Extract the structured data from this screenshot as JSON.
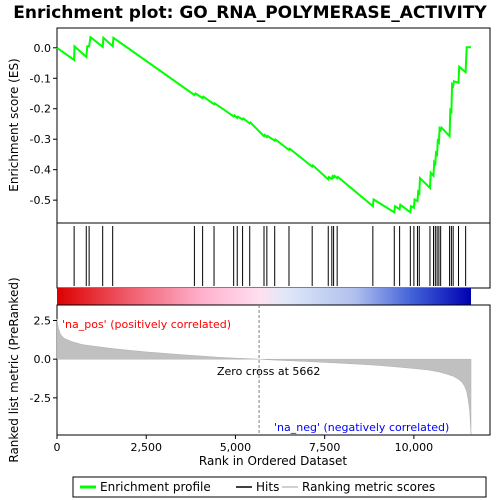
{
  "title": "Enrichment plot: GO_RNA_POLYMERASE_ACTIVITY",
  "colors": {
    "enrichment_line": "#00ff00",
    "hits": "#000000",
    "metric_fill": "#c0c0c0",
    "pos_label": "#ff0000",
    "neg_label": "#0000ff",
    "zero_cross_line": "#808080"
  },
  "chart_data": [
    {
      "type": "line",
      "panel": "enrichment-score",
      "ylabel": "Enrichment score (ES)",
      "xlim": [
        0,
        11600
      ],
      "ylim": [
        -0.575,
        0.065
      ],
      "yticks": [
        0.0,
        -0.1,
        -0.2,
        -0.3,
        -0.4,
        -0.5
      ],
      "ytick_labels": [
        "0.0",
        "-0.1",
        "-0.2",
        "-0.3",
        "-0.4",
        "-0.5"
      ],
      "grid": false,
      "series": [
        {
          "name": "Enrichment profile",
          "x": [
            0,
            480,
            490,
            820,
            850,
            900,
            940,
            1280,
            1300,
            1560,
            1580,
            3850,
            3880,
            4080,
            4100,
            4400,
            4420,
            4950,
            4970,
            5050,
            5070,
            5200,
            5220,
            5400,
            5420,
            5800,
            5820,
            5880,
            5900,
            6100,
            6120,
            6500,
            6520,
            7150,
            7170,
            7600,
            7620,
            7700,
            7720,
            7750,
            7770,
            7850,
            7870,
            8850,
            8870,
            9450,
            9470,
            9600,
            9620,
            9900,
            9920,
            10000,
            10020,
            10100,
            10120,
            10150,
            10170,
            10450,
            10470,
            10550,
            10570,
            10600,
            10620,
            10650,
            10670,
            10700,
            10720,
            10750,
            10770,
            11000,
            11020,
            11050,
            11070,
            11100,
            11120,
            11250,
            11270,
            11450,
            11480,
            11600
          ],
          "y": [
            0.0,
            -0.04,
            0.005,
            -0.03,
            0.005,
            0.005,
            0.035,
            0.003,
            0.033,
            0.005,
            0.033,
            -0.155,
            -0.15,
            -0.165,
            -0.16,
            -0.185,
            -0.182,
            -0.225,
            -0.222,
            -0.23,
            -0.226,
            -0.235,
            -0.232,
            -0.248,
            -0.245,
            -0.29,
            -0.286,
            -0.293,
            -0.289,
            -0.305,
            -0.301,
            -0.335,
            -0.331,
            -0.39,
            -0.386,
            -0.432,
            -0.424,
            -0.43,
            -0.422,
            -0.426,
            -0.42,
            -0.428,
            -0.424,
            -0.52,
            -0.498,
            -0.54,
            -0.52,
            -0.53,
            -0.515,
            -0.54,
            -0.52,
            -0.525,
            -0.498,
            -0.503,
            -0.473,
            -0.478,
            -0.428,
            -0.46,
            -0.41,
            -0.42,
            -0.375,
            -0.38,
            -0.345,
            -0.35,
            -0.305,
            -0.31,
            -0.265,
            -0.27,
            -0.262,
            -0.29,
            -0.205,
            -0.21,
            -0.12,
            -0.125,
            -0.11,
            -0.115,
            -0.062,
            -0.08,
            0.002,
            0.002
          ]
        }
      ]
    },
    {
      "type": "scatter",
      "panel": "hits",
      "xlim": [
        0,
        11600
      ],
      "series": [
        {
          "name": "Hits",
          "x": [
            480,
            820,
            900,
            1280,
            1560,
            3850,
            4080,
            4400,
            4950,
            5050,
            5200,
            5400,
            5800,
            5880,
            6100,
            6500,
            7150,
            7600,
            7700,
            7750,
            7850,
            8850,
            9450,
            9600,
            9900,
            10000,
            10100,
            10150,
            10450,
            10550,
            10600,
            10650,
            10700,
            10750,
            11000,
            11050,
            11100,
            11250,
            11450
          ]
        }
      ]
    },
    {
      "type": "area",
      "panel": "ranked-list-metric",
      "xlabel": "Rank in Ordered Dataset",
      "ylabel": "Ranked list metric (PreRanked)",
      "xlim": [
        0,
        11600
      ],
      "ylim": [
        -4.9,
        3.5
      ],
      "xticks": [
        0,
        2500,
        5000,
        7500,
        10000
      ],
      "xtick_labels": [
        "0",
        "2,500",
        "5,000",
        "7,500",
        "10,000"
      ],
      "yticks": [
        2.5,
        0.0,
        -2.5
      ],
      "ytick_labels": [
        "2.5",
        "0.0",
        "-2.5"
      ],
      "zero_cross": 5662,
      "grid": false,
      "series": [
        {
          "name": "Ranking metric scores",
          "x": [
            0,
            40,
            100,
            200,
            400,
            700,
            1000,
            1500,
            2000,
            2500,
            3000,
            3500,
            4000,
            4500,
            5000,
            5400,
            5662,
            6000,
            6500,
            7000,
            7500,
            8000,
            8500,
            9000,
            9500,
            10000,
            10400,
            10700,
            10900,
            11100,
            11250,
            11350,
            11420,
            11480,
            11520,
            11560,
            11600
          ],
          "y": [
            2.6,
            2.0,
            1.6,
            1.35,
            1.15,
            0.95,
            0.85,
            0.7,
            0.58,
            0.47,
            0.38,
            0.29,
            0.21,
            0.13,
            0.07,
            0.03,
            0.0,
            -0.05,
            -0.1,
            -0.15,
            -0.21,
            -0.27,
            -0.33,
            -0.4,
            -0.5,
            -0.6,
            -0.7,
            -0.82,
            -0.95,
            -1.1,
            -1.3,
            -1.5,
            -1.75,
            -2.1,
            -2.6,
            -3.3,
            -4.85
          ]
        }
      ]
    }
  ],
  "annotations": {
    "pos_label": "'na_pos' (positively correlated)",
    "neg_label": "'na_neg' (negatively correlated)",
    "zero_cross_label": "Zero cross at 5662"
  },
  "legend": {
    "placement": "bottom",
    "items": [
      {
        "label": "Enrichment profile",
        "color": "#00ff00"
      },
      {
        "label": "Hits",
        "color": "#000000"
      },
      {
        "label": "Ranking metric scores",
        "color": "#c0c0c0"
      }
    ]
  }
}
